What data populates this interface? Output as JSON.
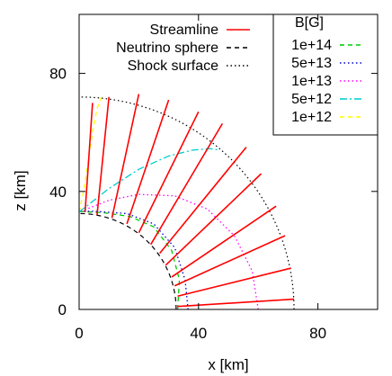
{
  "chart_data": {
    "type": "line",
    "title": "",
    "xlabel": "x [km]",
    "ylabel": "z [km]",
    "xlim": [
      0,
      100
    ],
    "ylim": [
      0,
      100
    ],
    "xticks": [
      0,
      40,
      80
    ],
    "yticks": [
      0,
      40,
      80
    ],
    "grid": false,
    "legend_left": {
      "placement": "top-center",
      "entries": [
        {
          "label": "Streamline",
          "color": "#ff0000",
          "style": "solid"
        },
        {
          "label": "Neutrino sphere",
          "color": "#000000",
          "style": "dashed"
        },
        {
          "label": "Shock surface",
          "color": "#000000",
          "style": "dotted"
        }
      ]
    },
    "legend_right": {
      "placement": "top-right",
      "title": "B[G]",
      "entries": [
        {
          "label": "1e+14",
          "color": "#00cc00",
          "style": "dashed"
        },
        {
          "label": "5e+13",
          "color": "#0000cc",
          "style": "dotted"
        },
        {
          "label": "1e+13",
          "color": "#ff00ff",
          "style": "dotted"
        },
        {
          "label": "5e+12",
          "color": "#00cccc",
          "style": "dashdot"
        },
        {
          "label": "1e+12",
          "color": "#ffff00",
          "style": "dashed"
        }
      ]
    },
    "shock_surface": {
      "shape": "quarter-circle",
      "radius": 72
    },
    "neutrino_sphere": {
      "shape": "quarter-circle",
      "radius": 32.5
    },
    "streamlines": [
      {
        "x": [
          33,
          72
        ],
        "z": [
          1,
          3.5
        ]
      },
      {
        "x": [
          33,
          71
        ],
        "z": [
          4.5,
          14
        ]
      },
      {
        "x": [
          32,
          69
        ],
        "z": [
          8,
          25
        ]
      },
      {
        "x": [
          31,
          66
        ],
        "z": [
          11,
          35
        ]
      },
      {
        "x": [
          29,
          61
        ],
        "z": [
          15,
          46
        ]
      },
      {
        "x": [
          27,
          56
        ],
        "z": [
          19,
          55
        ]
      },
      {
        "x": [
          24,
          48
        ],
        "z": [
          22,
          63
        ]
      },
      {
        "x": [
          20,
          40
        ],
        "z": [
          26,
          67
        ]
      },
      {
        "x": [
          16,
          30
        ],
        "z": [
          29,
          71
        ]
      },
      {
        "x": [
          11,
          20
        ],
        "z": [
          31,
          73
        ]
      },
      {
        "x": [
          6,
          10
        ],
        "z": [
          32,
          72
        ]
      },
      {
        "x": [
          2,
          4.5
        ],
        "z": [
          33,
          70
        ]
      }
    ],
    "field_contours": [
      {
        "name": "1e+14",
        "points": [
          [
            33,
            0
          ],
          [
            33.6,
            10
          ],
          [
            31,
            20
          ],
          [
            25,
            28
          ],
          [
            17,
            31.5
          ],
          [
            8,
            32.8
          ],
          [
            0,
            33.2
          ]
        ]
      },
      {
        "name": "5e+13",
        "points": [
          [
            36.5,
            0
          ],
          [
            35.5,
            10
          ],
          [
            32,
            21
          ],
          [
            25,
            29
          ],
          [
            16,
            32.5
          ],
          [
            6,
            33.2
          ],
          [
            0,
            33.4
          ]
        ]
      },
      {
        "name": "1e+13",
        "points": [
          [
            60,
            0
          ],
          [
            58,
            13
          ],
          [
            52,
            25
          ],
          [
            43,
            34
          ],
          [
            32,
            38.5
          ],
          [
            20,
            39
          ],
          [
            10,
            37
          ],
          [
            0,
            33
          ]
        ]
      },
      {
        "name": "5e+12",
        "points": [
          [
            0,
            33
          ],
          [
            10,
            41
          ],
          [
            20,
            47.5
          ],
          [
            30,
            52
          ],
          [
            38,
            54
          ],
          [
            44,
            54.5
          ],
          [
            47,
            54
          ]
        ]
      },
      {
        "name": "1e+12",
        "points": [
          [
            0,
            33
          ],
          [
            1.5,
            40
          ],
          [
            3,
            50
          ],
          [
            4.5,
            60
          ],
          [
            6,
            68
          ],
          [
            7.5,
            72
          ]
        ]
      }
    ]
  }
}
